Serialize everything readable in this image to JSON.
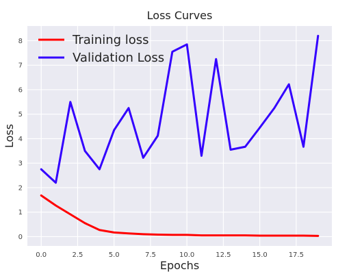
{
  "chart_data": {
    "type": "line",
    "title": "Loss Curves",
    "xlabel": "Epochs",
    "ylabel": "Loss",
    "x": [
      0,
      1,
      2,
      3,
      4,
      5,
      6,
      7,
      8,
      9,
      10,
      11,
      12,
      13,
      14,
      15,
      16,
      17,
      18,
      19
    ],
    "xlim": [
      -0.95,
      19.95
    ],
    "ylim": [
      -0.38,
      8.6
    ],
    "xticks": [
      0.0,
      2.5,
      5.0,
      7.5,
      10.0,
      12.5,
      15.0,
      17.5
    ],
    "xtick_labels": [
      "0.0",
      "2.5",
      "5.0",
      "7.5",
      "10.0",
      "12.5",
      "15.0",
      "17.5"
    ],
    "yticks": [
      0,
      1,
      2,
      3,
      4,
      5,
      6,
      7,
      8
    ],
    "ytick_labels": [
      "0",
      "1",
      "2",
      "3",
      "4",
      "5",
      "6",
      "7",
      "8"
    ],
    "grid": true,
    "legend_position": "top-left",
    "background": "#eaeaf2",
    "series": [
      {
        "name": "Training loss",
        "color": "#ff0000",
        "values": [
          1.68,
          1.27,
          0.91,
          0.55,
          0.27,
          0.17,
          0.13,
          0.1,
          0.08,
          0.07,
          0.07,
          0.05,
          0.05,
          0.05,
          0.05,
          0.04,
          0.04,
          0.04,
          0.04,
          0.03
        ]
      },
      {
        "name": "Validation Loss",
        "color": "#3300ff",
        "values": [
          2.75,
          2.2,
          5.5,
          3.5,
          2.75,
          4.35,
          5.25,
          3.22,
          4.12,
          7.55,
          7.85,
          3.3,
          7.25,
          3.55,
          3.67,
          4.45,
          5.25,
          6.22,
          3.67,
          8.2
        ]
      }
    ]
  }
}
